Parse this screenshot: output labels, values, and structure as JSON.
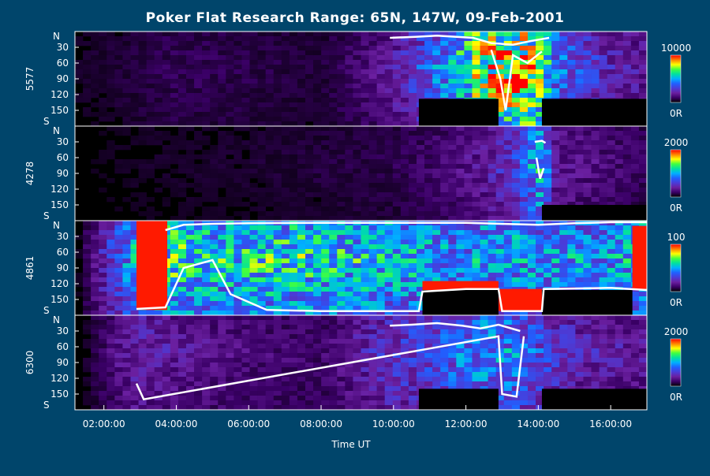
{
  "chart_data": {
    "type": "heatmap",
    "title": "Poker Flat Research Range: 65N, 147W, 09-Feb-2001",
    "xlabel": "Time UT",
    "x_ticks": [
      "02:00:00",
      "04:00:00",
      "06:00:00",
      "08:00:00",
      "10:00:00",
      "12:00:00",
      "14:00:00",
      "16:00:00"
    ],
    "x_range_hours": [
      1.2,
      17.0
    ],
    "y_axis": {
      "top_label": "N",
      "bottom_label": "S",
      "ticks": [
        "30",
        "60",
        "90",
        "120",
        "150"
      ],
      "range_deg": [
        0,
        180
      ]
    },
    "panels": [
      {
        "wavelength": "5577",
        "colorbar_max": "10000",
        "colorbar_min": "0R",
        "pixel_max": 10000,
        "activity": [
          [
            1.2,
            0.04
          ],
          [
            2.9,
            0.07
          ],
          [
            4,
            0.1
          ],
          [
            6,
            0.08
          ],
          [
            8,
            0.06
          ],
          [
            9.9,
            0.2
          ],
          [
            10.7,
            0.35
          ],
          [
            11.5,
            0.5
          ],
          [
            12.2,
            0.75
          ],
          [
            13,
            0.9
          ],
          [
            13.5,
            0.95
          ],
          [
            14,
            0.8
          ],
          [
            14.5,
            0.45
          ],
          [
            16,
            0.25
          ],
          [
            17,
            0.2
          ]
        ],
        "boundary_upper": [
          [
            9.9,
            12
          ],
          [
            10.6,
            10
          ],
          [
            11.2,
            8
          ],
          [
            12.2,
            12
          ],
          [
            12.7,
            22
          ],
          [
            13.3,
            25
          ],
          [
            13.8,
            18
          ],
          [
            14.3,
            12
          ]
        ],
        "boundary_lower": [
          [
            12.7,
            35
          ],
          [
            12.95,
            90
          ],
          [
            13.1,
            150
          ],
          [
            13.3,
            45
          ],
          [
            13.7,
            60
          ],
          [
            14.1,
            38
          ]
        ],
        "data_gaps": [
          [
            10.7,
            12.9,
            128,
            180
          ],
          [
            14.1,
            17,
            128,
            180
          ]
        ]
      },
      {
        "wavelength": "4278",
        "colorbar_max": "2000",
        "colorbar_min": "0R",
        "pixel_max": 2000,
        "activity": [
          [
            1.2,
            0.02
          ],
          [
            2.9,
            0.04
          ],
          [
            6,
            0.05
          ],
          [
            9.9,
            0.08
          ],
          [
            11,
            0.12
          ],
          [
            12.5,
            0.2
          ],
          [
            13.5,
            0.35
          ],
          [
            14.1,
            0.6
          ],
          [
            14.5,
            0.2
          ],
          [
            17,
            0.1
          ]
        ],
        "boundary_upper": [
          [
            13.9,
            30
          ],
          [
            14.1,
            28
          ],
          [
            14.2,
            32
          ]
        ],
        "boundary_lower": [
          [
            13.95,
            60
          ],
          [
            14.05,
            100
          ],
          [
            14.15,
            80
          ]
        ],
        "data_gaps": [
          [
            14.1,
            17,
            150,
            180
          ]
        ]
      },
      {
        "wavelength": "4861",
        "colorbar_max": "100",
        "colorbar_min": "0R",
        "pixel_max": 100,
        "activity": [
          [
            1.2,
            0
          ],
          [
            2.9,
            0.55
          ],
          [
            3.5,
            0.7
          ],
          [
            5,
            0.6
          ],
          [
            7,
            0.65
          ],
          [
            9,
            0.6
          ],
          [
            10.7,
            0.55
          ],
          [
            12,
            0.5
          ],
          [
            13,
            0.55
          ],
          [
            14.1,
            0.5
          ],
          [
            16,
            0.5
          ],
          [
            17,
            0.6
          ]
        ],
        "boundary_upper": [
          [
            3.7,
            18
          ],
          [
            4.2,
            8
          ],
          [
            5,
            6
          ],
          [
            6,
            5
          ],
          [
            8,
            4
          ],
          [
            10,
            4
          ],
          [
            12,
            4
          ],
          [
            14,
            8
          ],
          [
            15,
            5
          ],
          [
            16,
            3
          ],
          [
            17,
            3
          ]
        ],
        "boundary_lower": [
          [
            2.9,
            168
          ],
          [
            3.7,
            165
          ],
          [
            4.2,
            90
          ],
          [
            5,
            75
          ],
          [
            5.5,
            140
          ],
          [
            6.5,
            170
          ],
          [
            8,
            172
          ],
          [
            10.7,
            172
          ],
          [
            10.8,
            135
          ],
          [
            12,
            130
          ],
          [
            12.9,
            130
          ],
          [
            13,
            172
          ],
          [
            14.1,
            172
          ],
          [
            14.15,
            130
          ],
          [
            16,
            128
          ],
          [
            17,
            132
          ]
        ],
        "red_regions": [
          [
            2.9,
            3.75,
            0,
            170
          ],
          [
            10.8,
            12.9,
            115,
            132
          ],
          [
            12.9,
            14.1,
            130,
            172
          ],
          [
            16.6,
            17,
            10,
            130
          ]
        ],
        "data_gaps": [
          [
            10.8,
            12.9,
            132,
            180
          ],
          [
            14.1,
            16.6,
            132,
            180
          ]
        ]
      },
      {
        "wavelength": "6300",
        "colorbar_max": "2000",
        "colorbar_min": "0R",
        "pixel_max": 2000,
        "activity": [
          [
            1.2,
            0
          ],
          [
            2.9,
            0.25
          ],
          [
            4,
            0.2
          ],
          [
            6,
            0.15
          ],
          [
            8,
            0.12
          ],
          [
            9.9,
            0.3
          ],
          [
            11,
            0.35
          ],
          [
            12.5,
            0.5
          ],
          [
            13.5,
            0.45
          ],
          [
            14.1,
            0.35
          ],
          [
            15,
            0.25
          ],
          [
            17,
            0.2
          ]
        ],
        "boundary_upper": [
          [
            9.9,
            20
          ],
          [
            10.5,
            18
          ],
          [
            11.2,
            15
          ],
          [
            11.9,
            20
          ],
          [
            12.4,
            25
          ],
          [
            12.9,
            18
          ],
          [
            13.5,
            30
          ]
        ],
        "boundary_lower": [
          [
            2.9,
            130
          ],
          [
            3.1,
            160
          ],
          [
            12.9,
            40
          ],
          [
            13.0,
            150
          ],
          [
            13.4,
            155
          ],
          [
            13.6,
            40
          ]
        ],
        "data_gaps": [
          [
            10.7,
            12.9,
            140,
            180
          ],
          [
            14.1,
            17,
            140,
            180
          ]
        ]
      }
    ],
    "colormap": [
      "#000000",
      "#3a0066",
      "#6a1fa0",
      "#4a3cd8",
      "#2060ff",
      "#00b0ff",
      "#00e0a0",
      "#40ff40",
      "#ffff00",
      "#ff8000",
      "#ff0000"
    ]
  }
}
